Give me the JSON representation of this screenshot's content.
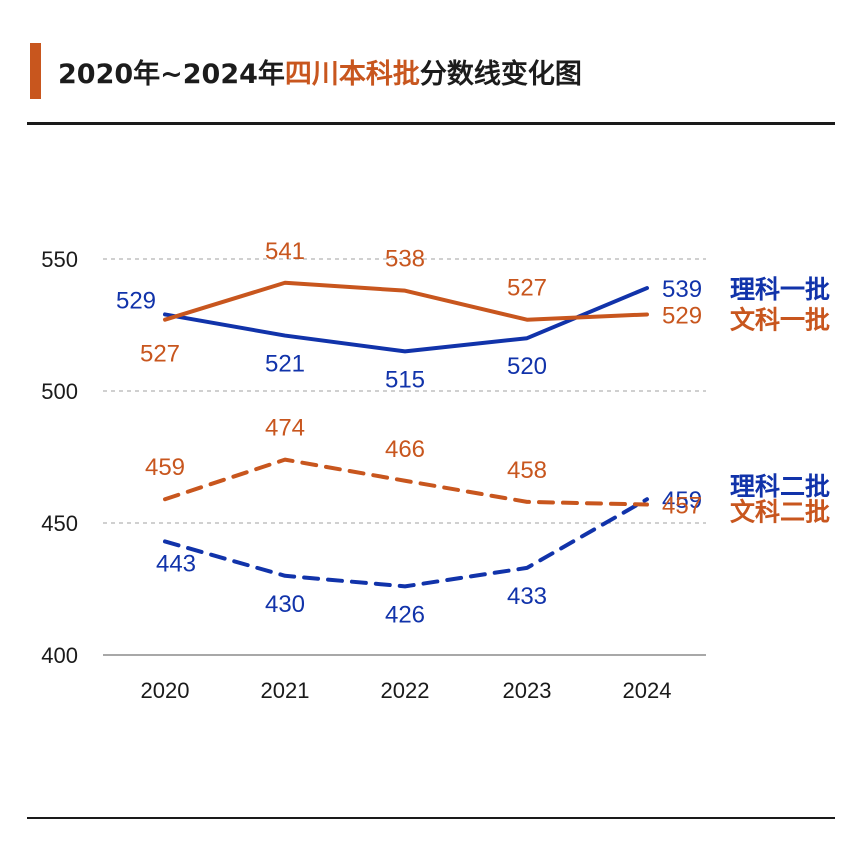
{
  "title": {
    "prefix": "2020年~2024年",
    "highlight": "四川本科批",
    "suffix": "分数线变化图"
  },
  "colors": {
    "science": "#1133aa",
    "arts": "#c8561e",
    "title_highlight": "#c8561e",
    "grid": "#b3b3b3",
    "axis_text": "#1a1a1a"
  },
  "chart_data": {
    "type": "line",
    "title": "2020年~2024年四川本科批分数线变化图",
    "categories": [
      "2020",
      "2021",
      "2022",
      "2023",
      "2024"
    ],
    "ylim": [
      400,
      550
    ],
    "yticks": [
      400,
      450,
      500,
      550
    ],
    "grid": true,
    "xlabel": "",
    "ylabel": "",
    "series": [
      {
        "name": "理科一批",
        "values": [
          529,
          521,
          515,
          520,
          539
        ],
        "color": "#1133aa",
        "dashed": false,
        "label_side": [
          "above",
          "below",
          "below",
          "below",
          "right"
        ]
      },
      {
        "name": "文科一批",
        "values": [
          527,
          541,
          538,
          527,
          529
        ],
        "color": "#c8561e",
        "dashed": false,
        "label_side": [
          "below",
          "above",
          "above",
          "above",
          "right"
        ]
      },
      {
        "name": "理科二批",
        "values": [
          443,
          430,
          426,
          433,
          459
        ],
        "color": "#1133aa",
        "dashed": true,
        "label_side": [
          "below",
          "below",
          "below",
          "below",
          "right"
        ]
      },
      {
        "name": "文科二批",
        "values": [
          459,
          474,
          466,
          458,
          457
        ],
        "color": "#c8561e",
        "dashed": true,
        "label_side": [
          "above",
          "above",
          "above",
          "above",
          "right"
        ]
      }
    ]
  }
}
